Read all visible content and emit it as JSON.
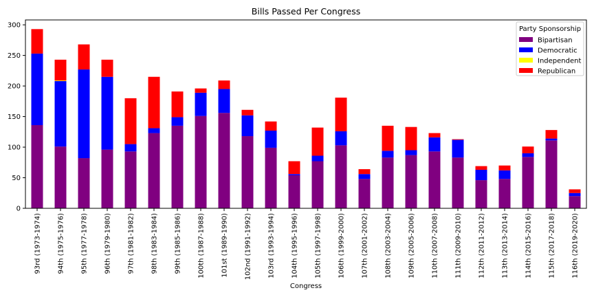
{
  "chart_data": {
    "type": "bar",
    "stacked": true,
    "title": "Bills Passed Per Congress",
    "xlabel": "Congress",
    "ylabel": "",
    "ylim": [
      0,
      308
    ],
    "yticks": [
      0,
      50,
      100,
      150,
      200,
      250,
      300
    ],
    "grid": false,
    "legend": {
      "title": "Party Sponsorship",
      "placement": "top-right"
    },
    "categories": [
      "93rd (1973-1974)",
      "94th (1975-1976)",
      "95th (1977-1978)",
      "96th (1979-1980)",
      "97th (1981-1982)",
      "98th (1983-1984)",
      "99th (1985-1986)",
      "100th (1987-1988)",
      "101st (1989-1990)",
      "102nd (1991-1992)",
      "103rd (1993-1994)",
      "104th (1995-1996)",
      "105th (1997-1998)",
      "106th (1999-2000)",
      "107th (2001-2002)",
      "108th (2003-2004)",
      "109th (2005-2006)",
      "110th (2007-2008)",
      "111th (2009-2010)",
      "112th (2011-2012)",
      "113th (2013-2014)",
      "114th (2015-2016)",
      "115th (2017-2018)",
      "116th (2019-2020)"
    ],
    "series": [
      {
        "name": "Bipartisan",
        "color": "#800080",
        "values": [
          136,
          101,
          82,
          96,
          93,
          123,
          135,
          151,
          156,
          118,
          99,
          54,
          77,
          103,
          48,
          83,
          87,
          93,
          83,
          46,
          48,
          84,
          111,
          20
        ]
      },
      {
        "name": "Democratic",
        "color": "#0000ff",
        "values": [
          117,
          107,
          145,
          119,
          12,
          8,
          14,
          38,
          39,
          34,
          28,
          2,
          9,
          23,
          8,
          11,
          8,
          23,
          29,
          17,
          14,
          6,
          3,
          5
        ]
      },
      {
        "name": "Independent",
        "color": "#ffff00",
        "values": [
          0,
          1,
          0,
          0,
          0,
          0,
          0,
          0,
          0,
          0,
          0,
          0,
          0,
          0,
          0,
          0,
          0,
          0,
          0,
          0,
          0,
          0,
          0,
          0
        ]
      },
      {
        "name": "Republican",
        "color": "#ff0000",
        "values": [
          40,
          34,
          41,
          28,
          75,
          84,
          42,
          7,
          14,
          9,
          15,
          21,
          46,
          55,
          8,
          41,
          38,
          7,
          1,
          6,
          8,
          11,
          14,
          6
        ]
      }
    ]
  }
}
